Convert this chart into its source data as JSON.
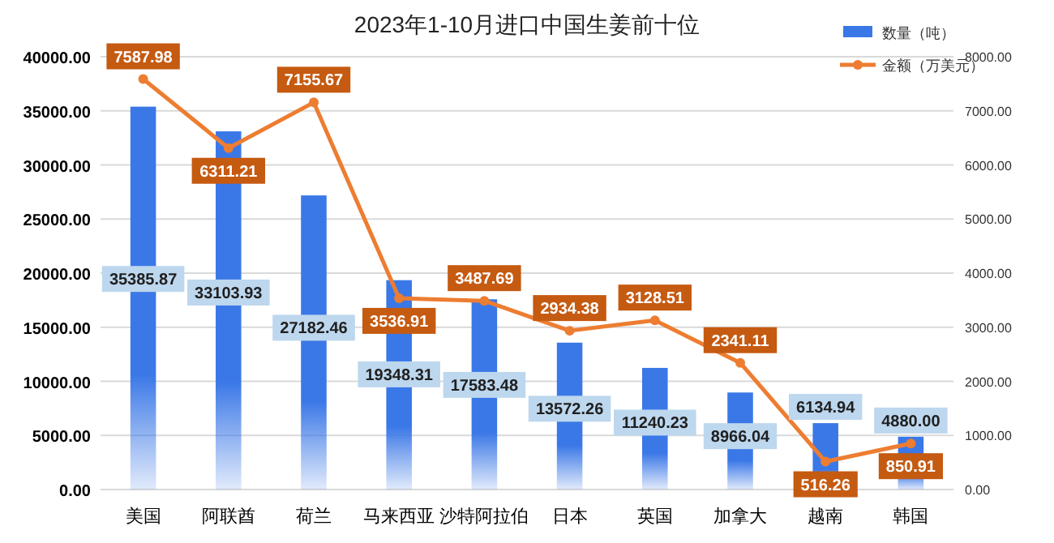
{
  "chart_data": {
    "type": "bar",
    "title": "2023年1-10月进口中国生姜前十位",
    "categories": [
      "美国",
      "阿联酋",
      "荷兰",
      "马来西亚",
      "沙特阿拉伯",
      "日本",
      "英国",
      "加拿大",
      "越南",
      "韩国"
    ],
    "series": [
      {
        "name": "数量（吨）",
        "color": "#3b78e7",
        "values": [
          35385.87,
          33103.93,
          27182.46,
          19348.31,
          17583.48,
          13572.26,
          11240.23,
          8966.04,
          6134.94,
          4880
        ],
        "value_labels": [
          "35385.87",
          "33103.93",
          "27182.46",
          "19348.31",
          "17583.48",
          "13572.26",
          "11240.23",
          "8966.04",
          "6134.94",
          "4880.00"
        ]
      },
      {
        "name": "金额（万美元）",
        "type": "line",
        "axis": "y2",
        "color": "#ed7d31",
        "marker": "circle",
        "values": [
          7587.98,
          6311.21,
          7155.67,
          3536.91,
          3487.69,
          2934.38,
          3128.51,
          2341.11,
          516.26,
          850.91
        ],
        "value_labels": [
          "7587.98",
          "6311.21",
          "7155.67",
          "3536.91",
          "3487.69",
          "2934.38",
          "3128.51",
          "2341.11",
          "516.26",
          "850.91"
        ]
      }
    ],
    "ylim": [
      0,
      40000
    ],
    "yticks": [
      {
        "value": 0,
        "label": "0.00"
      },
      {
        "value": 5000,
        "label": "5000.00"
      },
      {
        "value": 10000,
        "label": "10000.00"
      },
      {
        "value": 15000,
        "label": "15000.00"
      },
      {
        "value": 20000,
        "label": "20000.00"
      },
      {
        "value": 25000,
        "label": "25000.00"
      },
      {
        "value": 30000,
        "label": "30000.00"
      },
      {
        "value": 35000,
        "label": "35000.00"
      },
      {
        "value": 40000,
        "label": "40000.00"
      }
    ],
    "y2lim": [
      0,
      8000
    ],
    "y2ticks": [
      {
        "value": 0,
        "label": "0.00"
      },
      {
        "value": 1000,
        "label": "1000.00"
      },
      {
        "value": 2000,
        "label": "2000.00"
      },
      {
        "value": 3000,
        "label": "3000.00"
      },
      {
        "value": 4000,
        "label": "4000.00"
      },
      {
        "value": 5000,
        "label": "5000.00"
      },
      {
        "value": 6000,
        "label": "6000.00"
      },
      {
        "value": 7000,
        "label": "7000.00"
      },
      {
        "value": 8000,
        "label": "8000.00"
      }
    ],
    "grid": "y",
    "legend": "top right"
  }
}
